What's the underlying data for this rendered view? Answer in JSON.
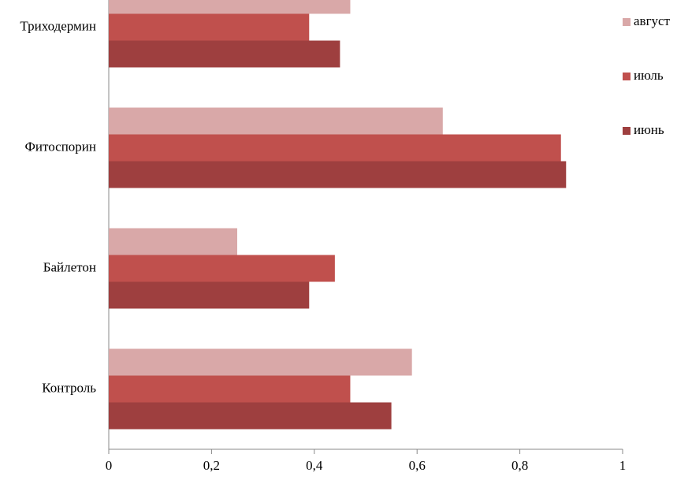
{
  "chart_data": {
    "type": "hbar",
    "categories": [
      "Контроль",
      "Байлетон",
      "Фитоспорин",
      "Триходермин"
    ],
    "series": [
      {
        "name": "июнь",
        "color": "#9e3f3f",
        "values": [
          0.55,
          0.39,
          0.89,
          0.45
        ]
      },
      {
        "name": "июль",
        "color": "#c0504d",
        "values": [
          0.47,
          0.44,
          0.88,
          0.39
        ]
      },
      {
        "name": "август",
        "color": "#d9a8a8",
        "values": [
          0.59,
          0.25,
          0.65,
          0.47
        ]
      }
    ],
    "xlim": [
      0,
      1
    ],
    "xticks": [
      0,
      {
        "value": 0.2,
        "label": "0,2"
      },
      {
        "value": 0.4,
        "label": "0,4"
      },
      {
        "value": 0.6,
        "label": "0,6"
      },
      {
        "value": 0.8,
        "label": "0,8"
      },
      1
    ],
    "legend": "right"
  }
}
